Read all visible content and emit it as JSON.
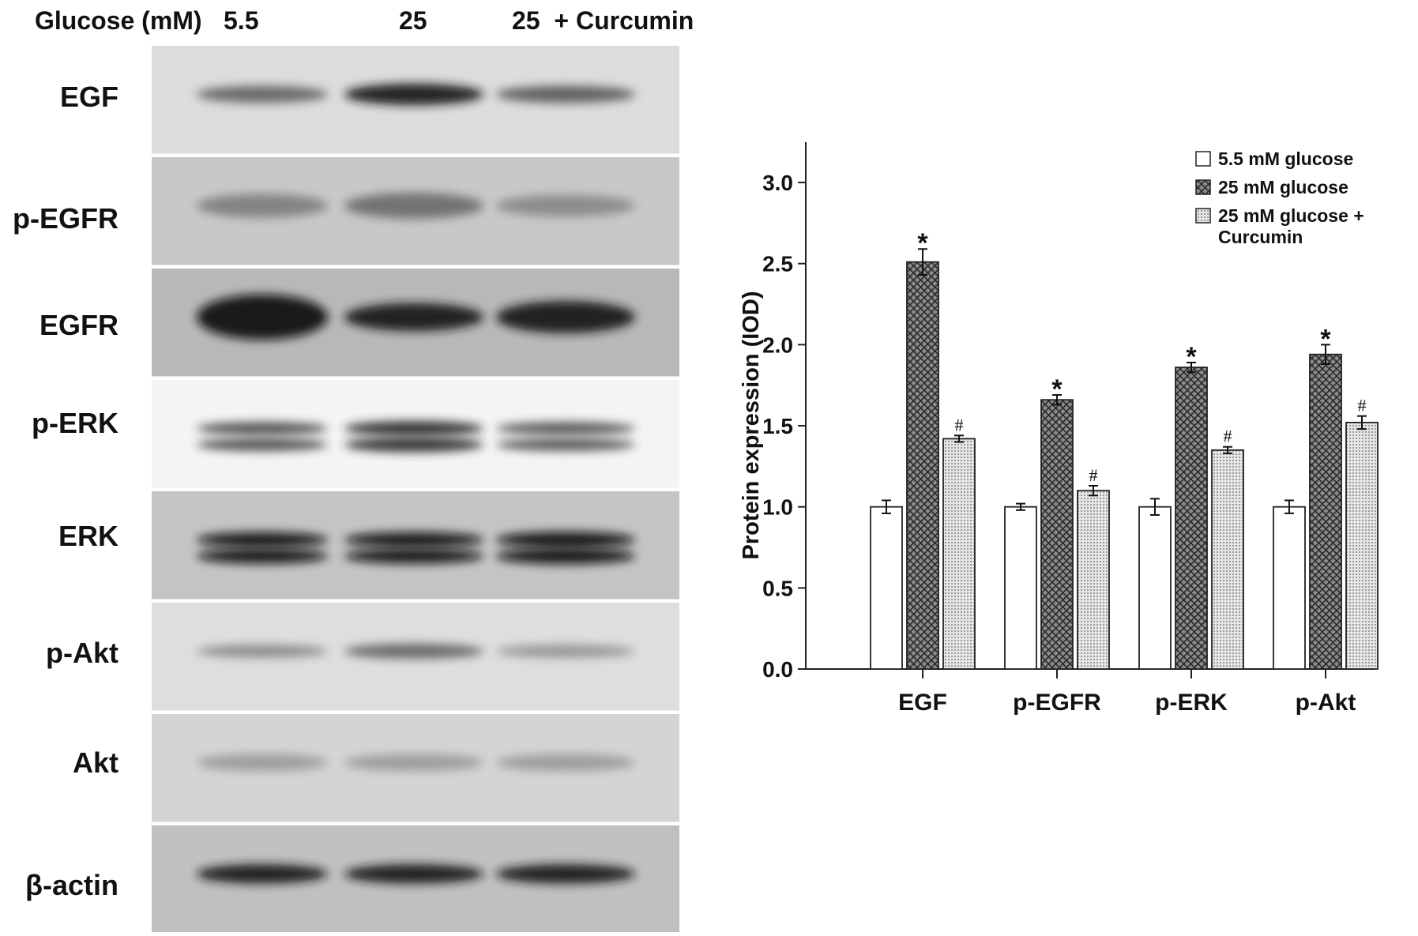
{
  "western_blot": {
    "header": {
      "condition_label": "Glucose (mM)",
      "lanes": [
        "5.5",
        "25",
        "25  + Curcumin"
      ]
    },
    "rows": [
      {
        "label": "EGF",
        "background": "#dcdcdc",
        "bands": [
          {
            "intensity": 0.55,
            "thickness": 0.16
          },
          {
            "intensity": 0.95,
            "thickness": 0.2
          },
          {
            "intensity": 0.6,
            "thickness": 0.16
          }
        ],
        "doublet": false
      },
      {
        "label": "p-EGFR",
        "background": "#c8c8c8",
        "bands": [
          {
            "intensity": 0.4,
            "thickness": 0.22
          },
          {
            "intensity": 0.5,
            "thickness": 0.24
          },
          {
            "intensity": 0.35,
            "thickness": 0.2
          }
        ],
        "doublet": false
      },
      {
        "label": "EGFR",
        "background": "#b8b8b8",
        "bands": [
          {
            "intensity": 1.0,
            "thickness": 0.42
          },
          {
            "intensity": 0.95,
            "thickness": 0.26
          },
          {
            "intensity": 0.95,
            "thickness": 0.3
          }
        ],
        "doublet": false
      },
      {
        "label": "p-ERK",
        "background": "#f4f4f4",
        "bands": [
          {
            "intensity": 0.7,
            "thickness": 0.12
          },
          {
            "intensity": 0.85,
            "thickness": 0.14
          },
          {
            "intensity": 0.65,
            "thickness": 0.12
          }
        ],
        "doublet": true
      },
      {
        "label": "ERK",
        "background": "#c4c4c4",
        "bands": [
          {
            "intensity": 1.0,
            "thickness": 0.14
          },
          {
            "intensity": 1.0,
            "thickness": 0.14
          },
          {
            "intensity": 1.0,
            "thickness": 0.15
          }
        ],
        "doublet": true
      },
      {
        "label": "p-Akt",
        "background": "#dedede",
        "bands": [
          {
            "intensity": 0.35,
            "thickness": 0.12
          },
          {
            "intensity": 0.55,
            "thickness": 0.14
          },
          {
            "intensity": 0.3,
            "thickness": 0.12
          }
        ],
        "doublet": false
      },
      {
        "label": "Akt",
        "background": "#d4d4d4",
        "bands": [
          {
            "intensity": 0.25,
            "thickness": 0.16
          },
          {
            "intensity": 0.25,
            "thickness": 0.16
          },
          {
            "intensity": 0.25,
            "thickness": 0.16
          }
        ],
        "doublet": false
      },
      {
        "label": "β-actin",
        "background": "#c0c0c0",
        "bands": [
          {
            "intensity": 0.95,
            "thickness": 0.18
          },
          {
            "intensity": 0.95,
            "thickness": 0.18
          },
          {
            "intensity": 0.95,
            "thickness": 0.18
          }
        ],
        "doublet": false
      }
    ]
  },
  "chart_data": {
    "type": "bar",
    "title": "",
    "xlabel": "",
    "ylabel": "Protein expression (IOD)",
    "ylim": [
      0,
      3.2
    ],
    "yticks": [
      "0.0",
      "0.5",
      "1.0",
      "1.5",
      "2.0",
      "2.5",
      "3.0"
    ],
    "categories": [
      "EGF",
      "p-EGFR",
      "p-ERK",
      "p-Akt"
    ],
    "series": [
      {
        "name": "5.5 mM glucose",
        "values": [
          1.0,
          1.0,
          1.0,
          1.0
        ],
        "errors": [
          0.04,
          0.02,
          0.05,
          0.04
        ],
        "markers": [
          "",
          "",
          "",
          ""
        ],
        "pattern": "white"
      },
      {
        "name": "25 mM glucose",
        "values": [
          2.51,
          1.66,
          1.86,
          1.94
        ],
        "errors": [
          0.08,
          0.03,
          0.03,
          0.06
        ],
        "markers": [
          "*",
          "*",
          "*",
          "*"
        ],
        "pattern": "crosshatch"
      },
      {
        "name": "25 mM glucose + Curcumin",
        "values": [
          1.42,
          1.1,
          1.35,
          1.52
        ],
        "errors": [
          0.02,
          0.03,
          0.02,
          0.04
        ],
        "markers": [
          "#",
          "#",
          "#",
          "#"
        ],
        "pattern": "dots"
      }
    ],
    "legend": {
      "placement": "top-right",
      "line1": [
        "5.5 mM glucose",
        "25 mM glucose",
        "25 mM glucose +"
      ],
      "line2": [
        "",
        "",
        "Curcumin"
      ]
    },
    "grid": false
  }
}
